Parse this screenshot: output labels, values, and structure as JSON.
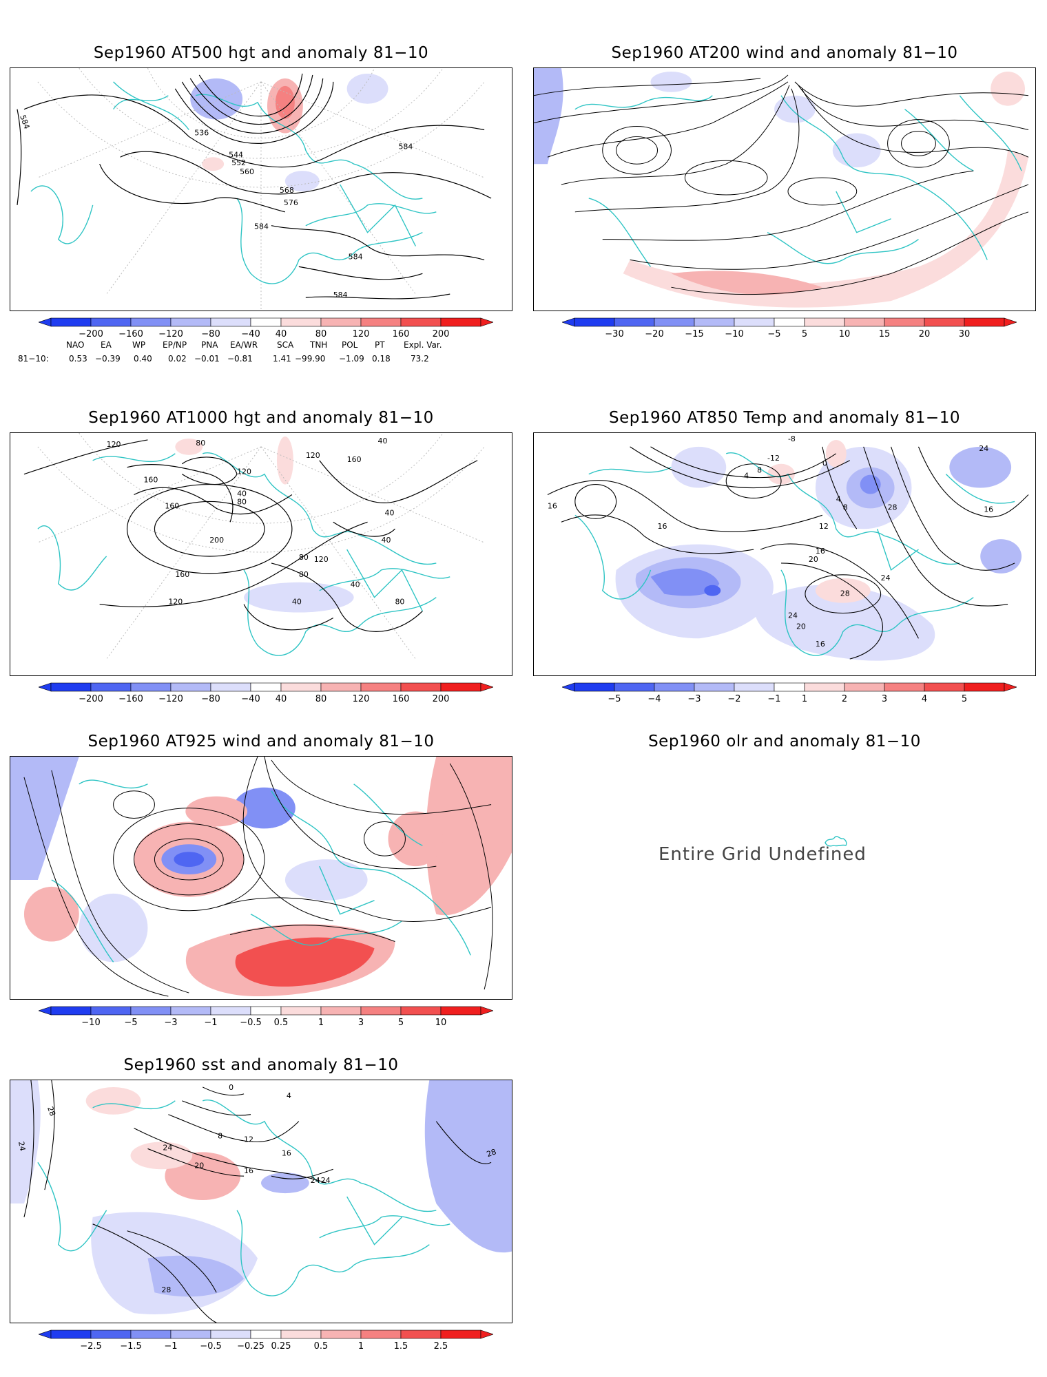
{
  "panels": [
    {
      "id": "p1",
      "title": "Sep1960 AT500 hgt and anomaly 81−10",
      "contour_labels": [
        "584",
        "536",
        "544",
        "552",
        "560",
        "568",
        "576",
        "584",
        "584",
        "584",
        "584"
      ],
      "colorbar": [
        "−200",
        "−160",
        "−120",
        "−80",
        "−40",
        "40",
        "80",
        "120",
        "160",
        "200"
      ]
    },
    {
      "id": "p2",
      "title": "Sep1960 AT200 wind and anomaly 81−10",
      "contour_labels": [],
      "colorbar": [
        "−30",
        "−20",
        "−15",
        "−10",
        "−5",
        "5",
        "10",
        "15",
        "20",
        "30"
      ]
    },
    {
      "id": "p3",
      "title": "Sep1960 AT1000 hgt and anomaly 81−10",
      "contour_labels": [
        "120",
        "80",
        "120",
        "160",
        "40",
        "80",
        "120",
        "160",
        "40",
        "160",
        "200",
        "160",
        "120",
        "40",
        "80",
        "120",
        "40",
        "80",
        "40",
        "80",
        "40"
      ],
      "colorbar": [
        "−200",
        "−160",
        "−120",
        "−80",
        "−40",
        "40",
        "80",
        "120",
        "160",
        "200"
      ]
    },
    {
      "id": "p4",
      "title": "Sep1960 AT850 Temp and anomaly 81−10",
      "contour_labels": [
        "-8",
        "-12",
        "16",
        "16",
        "4",
        "0",
        "8",
        "4",
        "8",
        "12",
        "16",
        "20",
        "24",
        "28",
        "24",
        "20",
        "16",
        "24",
        "28",
        "16"
      ],
      "colorbar": [
        "−5",
        "−4",
        "−3",
        "−2",
        "−1",
        "1",
        "2",
        "3",
        "4",
        "5"
      ]
    },
    {
      "id": "p5",
      "title": "Sep1960 AT925 wind and anomaly 81−10",
      "contour_labels": [],
      "colorbar": [
        "−10",
        "−5",
        "−3",
        "−1",
        "−0.5",
        "0.5",
        "1",
        "3",
        "5",
        "10"
      ]
    },
    {
      "id": "p6",
      "title": "Sep1960 olr and anomaly 81−10",
      "undefined_text": "Entire Grid Undefined"
    },
    {
      "id": "p7",
      "title": "Sep1960 sst and anomaly 81−10",
      "contour_labels": [
        "28",
        "24",
        "24",
        "20",
        "8",
        "12",
        "16",
        "16",
        "24",
        "24",
        "28",
        "28",
        "0",
        "4"
      ],
      "colorbar": [
        "−2.5",
        "−1.5",
        "−1",
        "−0.5",
        "−0.25",
        "0.25",
        "0.5",
        "1",
        "1.5",
        "2.5"
      ]
    }
  ],
  "indices": {
    "headers": [
      "NAO",
      "EA",
      "WP",
      "EP/NP",
      "PNA",
      "EA/WR",
      "SCA",
      "TNH",
      "POL",
      "PT",
      "Expl. Var."
    ],
    "row_label": "81−10:",
    "values": [
      "0.53",
      "−0.39",
      "0.40",
      "0.02",
      "−0.01",
      "−0.81",
      "1.41",
      "−99.90",
      "−1.09",
      "0.18",
      "73.2"
    ]
  },
  "colors": {
    "coast": "#2ec4c4",
    "neg": [
      "#1f3cf0",
      "#4f66f2",
      "#8190f5",
      "#b3baf7",
      "#dcdefb"
    ],
    "pos": [
      "#fbdcdc",
      "#f7b3b3",
      "#f58181",
      "#f25050",
      "#f01f1f"
    ]
  }
}
